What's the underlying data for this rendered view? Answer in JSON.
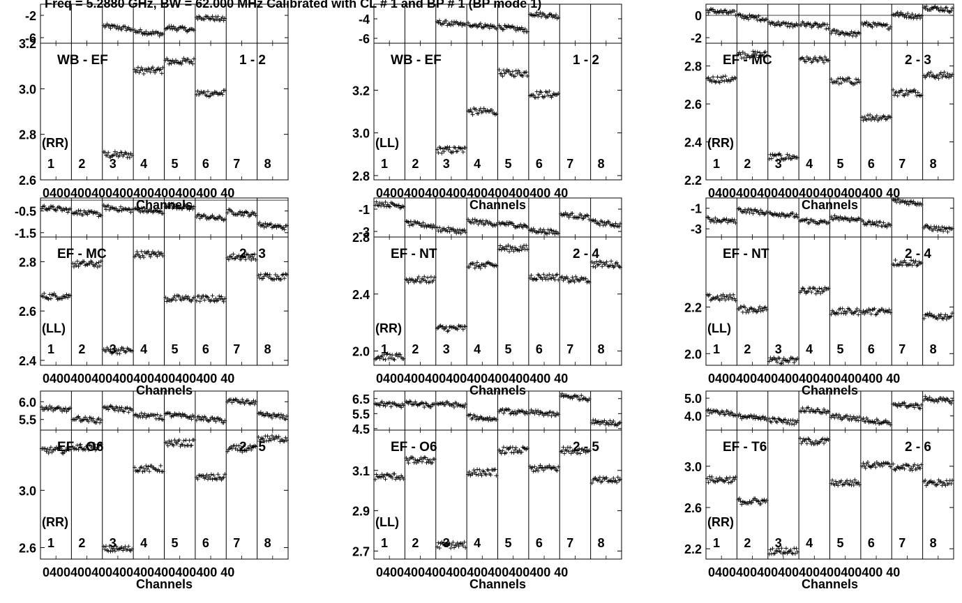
{
  "title": "Freq = 5.2880 GHz, BW = 62.000 MHz  Calibrated with CL # 1 and BP # 1 (BP mode 1)",
  "xlabel": "Channels",
  "xtick_text": "0400400400400400400400400 40",
  "chart_data": {
    "type": "scatter",
    "title": "Freq = 5.2880 GHz, BW = 62.000 MHz  Calibrated with CL # 1 and BP # 1 (BP mode 1)",
    "xlabel": "Channels",
    "channel_range": [
      0,
      62
    ],
    "ifs": [
      "1",
      "2",
      "3",
      "4",
      "5",
      "6",
      "7",
      "8"
    ],
    "panels": [
      {
        "baseline": "WB - EF",
        "pair": "1 - 2",
        "pol": "(RR)",
        "phase_ticks": [
          "-2",
          "-6"
        ],
        "phase_ylim": [
          -7,
          0
        ],
        "phase_grid_zero": false,
        "phase": [
          null,
          null,
          -4.2,
          -5.1,
          -4.4,
          -2.5,
          null,
          null
        ],
        "amp_ticks": [
          "3.2",
          "3.0",
          "2.8",
          "2.6"
        ],
        "amp_ylim": [
          2.6,
          3.2
        ],
        "amp": [
          null,
          null,
          2.71,
          3.08,
          3.12,
          2.98,
          null,
          null
        ]
      },
      {
        "baseline": "WB - EF",
        "pair": "1 - 2",
        "pol": "(LL)",
        "phase_ticks": [
          "-4",
          "-6"
        ],
        "phase_ylim": [
          -6.5,
          -2.5
        ],
        "phase_grid_zero": false,
        "phase": [
          null,
          null,
          -4.5,
          -4.7,
          -5.0,
          -3.6,
          null,
          null
        ],
        "amp_ticks": [
          "3.2",
          "3.0",
          "2.8"
        ],
        "amp_ylim": [
          2.78,
          3.42
        ],
        "amp": [
          null,
          null,
          2.92,
          3.1,
          3.28,
          3.18,
          null,
          null
        ]
      },
      {
        "baseline": "EF - MC",
        "pair": "2 - 3",
        "pol": "(RR)",
        "phase_ticks": [
          "0",
          "-2"
        ],
        "phase_ylim": [
          -2.5,
          1
        ],
        "phase_grid_zero": true,
        "phase": [
          0.3,
          -0.2,
          -0.8,
          -0.9,
          -1.6,
          -0.9,
          0,
          0.6
        ],
        "amp_ticks": [
          "2.8",
          "2.6",
          "2.4",
          "2.2"
        ],
        "amp_ylim": [
          2.2,
          2.92
        ],
        "amp": [
          2.73,
          2.86,
          2.32,
          2.83,
          2.72,
          2.53,
          2.66,
          2.75
        ]
      },
      {
        "baseline": "EF - MC",
        "pair": "2 - 3",
        "pol": "(LL)",
        "phase_ticks": [
          "-0.5",
          "-1.5"
        ],
        "phase_ylim": [
          -1.7,
          0.1
        ],
        "phase_grid_zero": true,
        "phase": [
          -0.4,
          -0.6,
          -0.4,
          -0.5,
          -0.3,
          -0.8,
          -0.6,
          -1.2
        ],
        "amp_ticks": [
          "2.8",
          "2.6",
          "2.4"
        ],
        "amp_ylim": [
          2.38,
          2.9
        ],
        "amp": [
          2.66,
          2.79,
          2.44,
          2.83,
          2.65,
          2.65,
          2.82,
          2.74
        ]
      },
      {
        "baseline": "EF - NT",
        "pair": "2 - 4",
        "pol": "(RR)",
        "phase_ticks": [
          "-1",
          "-3"
        ],
        "phase_ylim": [
          -3.5,
          0
        ],
        "phase_grid_zero": false,
        "phase": [
          -0.6,
          -2.4,
          -2.9,
          -2.2,
          -2.4,
          -3.0,
          -1.6,
          -2.3
        ],
        "amp_ticks": [
          "2.8",
          "2.4",
          "2.0"
        ],
        "amp_ylim": [
          1.9,
          2.8
        ],
        "amp": [
          1.96,
          2.5,
          2.16,
          2.6,
          2.72,
          2.52,
          2.5,
          2.61
        ]
      },
      {
        "baseline": "EF - NT",
        "pair": "2 - 4",
        "pol": "(LL)",
        "phase_ticks": [
          "-1",
          "-3"
        ],
        "phase_ylim": [
          -3.8,
          0
        ],
        "phase_grid_zero": false,
        "phase": [
          -2.2,
          -1.3,
          -1.6,
          -2.3,
          -2.0,
          -2.5,
          -0.4,
          -3.0
        ],
        "amp_ticks": [
          "2.2",
          "2.0"
        ],
        "amp_ylim": [
          1.95,
          2.5
        ],
        "amp": [
          2.24,
          2.19,
          1.97,
          2.27,
          2.18,
          2.18,
          2.39,
          2.16
        ]
      },
      {
        "baseline": "EF - O6",
        "pair": "2 - 5",
        "pol": "(RR)",
        "phase_ticks": [
          "6.0",
          "5.5"
        ],
        "phase_ylim": [
          5.2,
          6.3
        ],
        "phase_grid_zero": false,
        "phase": [
          5.8,
          5.5,
          5.8,
          5.6,
          5.6,
          5.5,
          6.0,
          5.6
        ],
        "amp_ticks": [
          "3.0",
          "2.6"
        ],
        "amp_ylim": [
          2.52,
          3.42
        ],
        "amp": [
          3.28,
          3.3,
          2.59,
          3.15,
          3.33,
          3.09,
          3.29,
          3.36
        ]
      },
      {
        "baseline": "EF - O6",
        "pair": "2 - 5",
        "pol": "(LL)",
        "phase_ticks": [
          "6.5",
          "5.5",
          "4.5"
        ],
        "phase_ylim": [
          4.4,
          7.0
        ],
        "phase_grid_zero": false,
        "phase": [
          6.1,
          6.1,
          6.1,
          5.2,
          5.6,
          5.5,
          6.6,
          4.9
        ],
        "amp_ticks": [
          "3.1",
          "2.9",
          "2.7"
        ],
        "amp_ylim": [
          2.66,
          3.3
        ],
        "amp": [
          3.07,
          3.15,
          2.73,
          3.09,
          3.2,
          3.11,
          3.2,
          3.05
        ]
      },
      {
        "baseline": "EF - T6",
        "pair": "2 - 6",
        "pol": "(RR)",
        "phase_ticks": [
          "5.0",
          "4.0"
        ],
        "phase_ylim": [
          3.2,
          5.4
        ],
        "phase_grid_zero": false,
        "phase": [
          4.2,
          3.9,
          3.7,
          4.3,
          3.9,
          3.7,
          4.6,
          4.9
        ],
        "amp_ticks": [
          "3.0",
          "2.6",
          "2.2"
        ],
        "amp_ylim": [
          2.1,
          3.35
        ],
        "amp": [
          2.87,
          2.66,
          2.18,
          3.24,
          2.84,
          3.01,
          2.99,
          2.84
        ]
      }
    ]
  }
}
